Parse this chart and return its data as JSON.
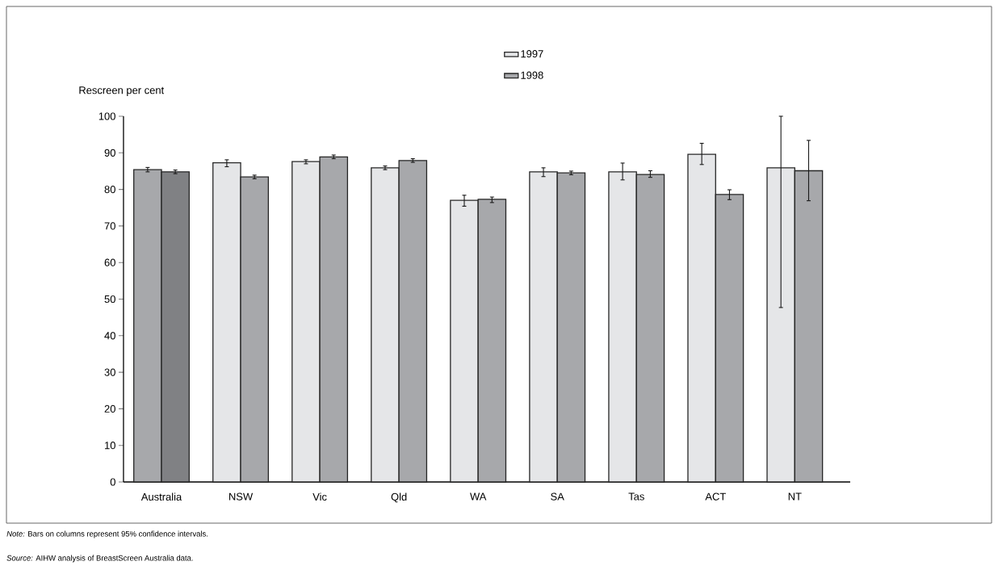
{
  "chart_data": {
    "type": "bar",
    "ylabel": "Rescreen per cent",
    "categories": [
      "Australia",
      "NSW",
      "Vic",
      "Qld",
      "WA",
      "SA",
      "Tas",
      "ACT",
      "NT"
    ],
    "series": [
      {
        "name": "1997",
        "color": "#e5e6e8",
        "colors": [
          "#a7a8ab",
          "#e5e6e8",
          "#e5e6e8",
          "#e5e6e8",
          "#e5e6e8",
          "#e5e6e8",
          "#e5e6e8",
          "#e5e6e8",
          "#e5e6e8"
        ],
        "values": [
          85.4,
          87.3,
          87.6,
          85.9,
          77.0,
          84.8,
          84.8,
          89.6,
          85.9
        ],
        "errors": [
          [
            84.8,
            86.0
          ],
          [
            86.2,
            88.1
          ],
          [
            87.0,
            88.1
          ],
          [
            85.4,
            86.4
          ],
          [
            75.4,
            78.4
          ],
          [
            83.5,
            85.9
          ],
          [
            82.6,
            87.2
          ],
          [
            86.8,
            92.6
          ],
          [
            47.7,
            100
          ]
        ]
      },
      {
        "name": "1998",
        "color": "#a7a8ab",
        "colors": [
          "#808184",
          "#a7a8ab",
          "#a7a8ab",
          "#a7a8ab",
          "#a7a8ab",
          "#a7a8ab",
          "#a7a8ab",
          "#a7a8ab",
          "#a7a8ab"
        ],
        "values": [
          84.8,
          83.4,
          88.9,
          87.9,
          77.3,
          84.5,
          84.1,
          78.6,
          85.1
        ],
        "errors": [
          [
            84.3,
            85.3
          ],
          [
            82.9,
            83.9
          ],
          [
            88.4,
            89.4
          ],
          [
            87.4,
            88.4
          ],
          [
            76.4,
            77.9
          ],
          [
            84.0,
            85.0
          ],
          [
            83.3,
            85.1
          ],
          [
            77.2,
            79.9
          ],
          [
            76.9,
            93.4
          ]
        ]
      }
    ],
    "ylim": [
      0,
      100
    ],
    "yticks": [
      0,
      10,
      20,
      30,
      40,
      50,
      60,
      70,
      80,
      90,
      100
    ],
    "legend": "top",
    "annotations": [
      "*Note:* Bars on columns represent 95% confidence intervals.",
      "*Source:* AIHW analysis of BreastScreen Australia data."
    ]
  }
}
